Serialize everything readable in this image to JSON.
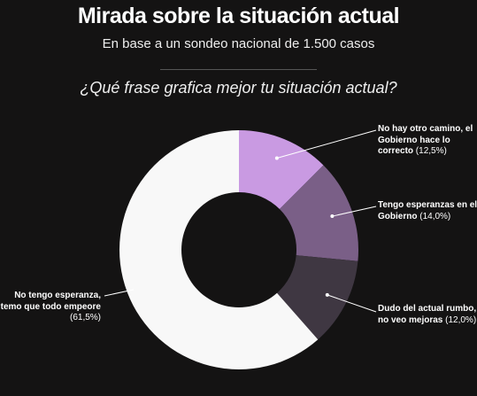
{
  "chart_data": {
    "type": "donut",
    "title": "Mirada sobre la situación actual",
    "subtitle": "En base a un sondeo nacional de 1.500 casos",
    "question": "¿Qué frase grafica mejor tu situación actual?",
    "categories": [
      "No hay otro camino, el Gobierno hace lo correcto",
      "Tengo esperanzas en el Gobierno",
      "Dudo del actual rumbo, no veo mejoras",
      "No tengo esperanza, temo que todo empeore"
    ],
    "values": [
      12.5,
      14.0,
      12.0,
      61.5
    ],
    "value_labels": [
      "(12,5%)",
      "(14,0%)",
      "(12,0%)",
      "(61,5%)"
    ],
    "colors": [
      "#c99ae2",
      "#7a5f87",
      "#3f3742",
      "#f8f8f8"
    ]
  }
}
